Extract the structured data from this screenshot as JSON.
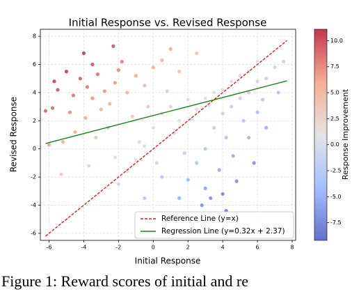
{
  "chart_data": {
    "type": "scatter",
    "title": "Initial Response vs. Revised Response",
    "x_label": "Initial Response",
    "y_label": "Revised Response",
    "xlim": [
      -6.5,
      8.2
    ],
    "ylim": [
      -6.5,
      8.5
    ],
    "xticks": [
      -6,
      -4,
      -2,
      0,
      2,
      4,
      6,
      8
    ],
    "yticks": [
      -6,
      -4,
      -2,
      0,
      2,
      4,
      6,
      8
    ],
    "grid": true,
    "legend": "lower right",
    "colorbar": {
      "label": "Response Improvement",
      "colormap": "coolwarm",
      "clim": [
        -9.2,
        11.1
      ],
      "ticks": [
        -7.5,
        {
          "value": -5,
          "label": "-5.0"
        },
        -2.5,
        {
          "value": 0,
          "label": "0.0"
        },
        2.5,
        {
          "value": 5,
          "label": "5.0"
        },
        7.5,
        {
          "value": 10,
          "label": "10.0"
        }
      ]
    },
    "x": [
      -5.5,
      -5,
      -4.6,
      -4.2,
      -3.8,
      -3.5,
      -3.2,
      -2.8,
      -2.5,
      -2.2,
      -4.8,
      -5.8,
      -6.2,
      -3.9,
      -3,
      -2,
      -1.5,
      -1,
      -0.5,
      0,
      -1.8,
      -3.5,
      0.5,
      -4.5,
      -5.2,
      -3.3,
      -2.6,
      -1.2,
      -0.3,
      0.8,
      1.5,
      1,
      2.5,
      -5.7,
      -4,
      -2.3,
      -6,
      -3.7,
      -2.2,
      -5.3,
      -1.5,
      -0.8,
      0.5,
      1,
      1.5,
      2,
      2.5,
      3,
      3.5,
      0,
      -0.5,
      1.2,
      2.2,
      3.2,
      4,
      4.5,
      5,
      5.5,
      6,
      -1,
      -2,
      4,
      4.5,
      5,
      5.5,
      6,
      6.5,
      7,
      7.5,
      3.5,
      4.2,
      5.2,
      6,
      6.3,
      3,
      2.5,
      3.8,
      4.6,
      5.5,
      2,
      3,
      4,
      2.8,
      1.5,
      0.5,
      1,
      3.5,
      4.8,
      6.5,
      7.2,
      1.8,
      0.2,
      -0.5,
      4.2,
      5.8,
      2.3,
      3.3
    ],
    "y": [
      4.2,
      5.5,
      3.8,
      5,
      4.4,
      3.6,
      5.3,
      4.1,
      3.2,
      4.7,
      2.6,
      2.9,
      2.7,
      2.2,
      2.8,
      5.6,
      4,
      5.2,
      4.5,
      5.8,
      6.2,
      6,
      6.3,
      1.2,
      0.5,
      0.8,
      1.5,
      2.3,
      3,
      4.1,
      5.5,
      7.1,
      6.8,
      4.8,
      6.8,
      7.3,
      0.3,
      -1.2,
      -0.6,
      -1.8,
      -1.6,
      0.5,
      2.5,
      3,
      2,
      3.5,
      2.8,
      3.6,
      4,
      1.5,
      0.2,
      1.1,
      2.1,
      3.1,
      4.2,
      4.8,
      5.2,
      5.5,
      6.2,
      -0.8,
      -2.5,
      2.5,
      3,
      3.6,
      4,
      4.8,
      5,
      5.8,
      6.2,
      1.5,
      0.8,
      2,
      2.6,
      3.5,
      0,
      -1,
      -1.5,
      -0.5,
      0.8,
      -2.2,
      -2.8,
      -3.2,
      -4,
      -3.5,
      -2,
      -4.8,
      -5,
      -2.3,
      1.5,
      4,
      -0.3,
      -1,
      -3.5,
      -4.4,
      -1,
      -5.6,
      -3.5
    ],
    "lines": [
      {
        "name": "Reference Line (y=x)",
        "color": "#e41a1c",
        "dash": true,
        "x": [
          -6.2,
          7.7
        ],
        "values": [
          -6.2,
          7.7
        ]
      },
      {
        "name": "Regression Line (y=0.32x + 2.37)",
        "color": "#138a13",
        "dash": false,
        "x": [
          -6.2,
          7.7
        ],
        "values": [
          0.386,
          4.834
        ]
      }
    ]
  },
  "caption": "Figure 1: Reward scores of initial and re"
}
